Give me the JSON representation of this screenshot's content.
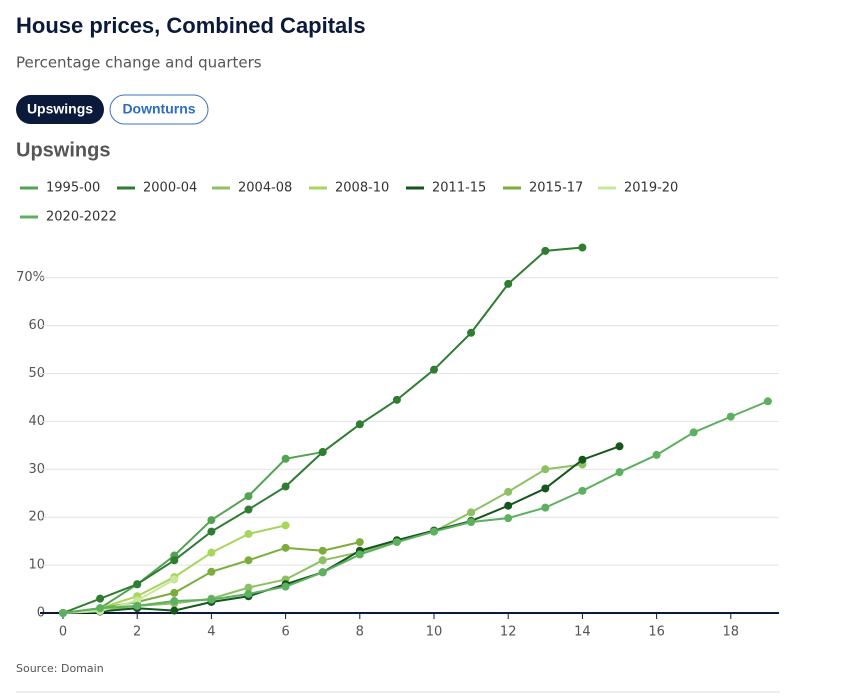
{
  "header": {
    "title": "House prices, Combined Capitals",
    "subtitle": "Percentage change and quarters"
  },
  "buttons": [
    "Upswings",
    "Downturns"
  ],
  "section": "Upswings",
  "source": "Source: Domain",
  "chart_data": {
    "type": "line",
    "x": [
      0,
      1,
      2,
      3,
      4,
      5,
      6,
      7,
      8,
      9,
      10,
      11,
      12,
      13,
      14,
      15,
      16,
      17,
      18,
      19
    ],
    "series": [
      {
        "name": "1995-00",
        "color": "#52a352",
        "values": [
          0,
          1,
          6,
          12,
          19.4,
          24.4,
          32.2,
          33.6,
          null,
          null,
          null,
          null,
          null,
          null,
          null,
          null,
          null,
          null,
          null,
          null
        ]
      },
      {
        "name": "2000-04",
        "color": "#2e7d32",
        "values": [
          0,
          3,
          6,
          11,
          17,
          21.6,
          26.4,
          33.6,
          39.4,
          44.5,
          50.8,
          58.5,
          68.7,
          75.6,
          76.3,
          null,
          null,
          null,
          null,
          null
        ]
      },
      {
        "name": "2004-08",
        "color": "#8cc063",
        "values": [
          0,
          0.5,
          1.5,
          2,
          3,
          5.3,
          7,
          11,
          12.7,
          15,
          17,
          21,
          25.3,
          30,
          31,
          null,
          null,
          null,
          null,
          null
        ]
      },
      {
        "name": "2008-10",
        "color": "#a8d65c",
        "values": [
          0,
          1,
          3.5,
          7.5,
          12.6,
          16.5,
          18.3,
          null,
          null,
          null,
          null,
          null,
          null,
          null,
          null,
          null,
          null,
          null,
          null,
          null
        ]
      },
      {
        "name": "2011-15",
        "color": "#15561c",
        "values": [
          0,
          0.3,
          1,
          0.5,
          2.3,
          3.5,
          6,
          8.5,
          13,
          15.2,
          17.2,
          19.2,
          22.4,
          26,
          32,
          34.8,
          null,
          null,
          null,
          null
        ]
      },
      {
        "name": "2015-17",
        "color": "#7cad3c",
        "values": [
          0,
          1,
          2.3,
          4.2,
          8.6,
          11,
          13.6,
          13,
          14.8,
          null,
          null,
          null,
          null,
          null,
          null,
          null,
          null,
          null,
          null,
          null
        ]
      },
      {
        "name": "2019-20",
        "color": "#c8e69c",
        "values": [
          0,
          0.4,
          2.6,
          7,
          null,
          null,
          null,
          null,
          null,
          null,
          null,
          null,
          null,
          null,
          null,
          null,
          null,
          null,
          null,
          null
        ]
      },
      {
        "name": "2020-2022",
        "color": "#5cb05f",
        "values": [
          0,
          1,
          1.5,
          2.5,
          2.8,
          4,
          5.5,
          8.5,
          12.2,
          14.8,
          17,
          19,
          19.8,
          22,
          25.5,
          29.4,
          33,
          37.7,
          41,
          44.2
        ]
      }
    ],
    "xlim": [
      0,
      19.3
    ],
    "xticks": [
      0,
      2,
      4,
      6,
      8,
      10,
      12,
      14,
      16,
      18
    ],
    "ylim": [
      0,
      78
    ],
    "yticks": [
      0,
      10,
      20,
      30,
      40,
      50,
      60,
      {
        "value": 70,
        "label": "70%"
      }
    ],
    "grid": true
  }
}
